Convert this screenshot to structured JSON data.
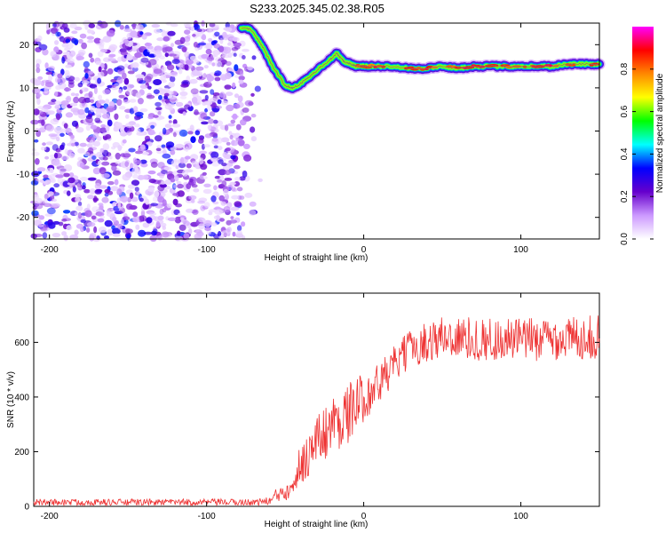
{
  "figure": {
    "title": "S233.2025.345.02.38.R05"
  },
  "chart_data": [
    {
      "type": "heatmap",
      "xlabel": "Height of straight line (km)",
      "ylabel": "Frequency (Hz)",
      "xlim": [
        -210,
        150
      ],
      "ylim": [
        -25,
        25
      ],
      "x_ticks": [
        -200,
        -100,
        0,
        100
      ],
      "y_ticks": [
        -20,
        -10,
        0,
        10,
        20
      ],
      "colorbar": {
        "label": "Normalized spectral amplitude",
        "range": [
          0,
          1
        ],
        "ticks": [
          "0.0",
          "0.2",
          "0.4",
          "0.6",
          "0.8"
        ],
        "colors": [
          "#ffffff",
          "#cc99ff",
          "#6600cc",
          "#0000ff",
          "#00ffff",
          "#00ff00",
          "#ffff00",
          "#ff8800",
          "#ff0000",
          "#ff00ff"
        ]
      },
      "ridge": {
        "x": [
          -78,
          -72,
          -65,
          -58,
          -50,
          -45,
          -40,
          -35,
          -30,
          -25,
          -20,
          -17,
          -15,
          -12,
          -8,
          -5,
          0,
          10,
          20,
          30,
          40,
          50,
          60,
          70,
          80,
          90,
          100,
          110,
          120,
          130,
          140,
          150
        ],
        "y": [
          24,
          23.5,
          20,
          15,
          10.5,
          10,
          11,
          12.5,
          14,
          15.5,
          17,
          18,
          17,
          16,
          15.5,
          15,
          15,
          15,
          15,
          14.5,
          14.5,
          15,
          14.5,
          15,
          15,
          15,
          15,
          15,
          15,
          15.5,
          15.5,
          15.5
        ]
      },
      "noise_region": {
        "x_range": [
          -210,
          -65
        ],
        "description_amplitude": [
          0.05,
          0.35
        ]
      }
    },
    {
      "type": "line",
      "xlabel": "Height of straight line (km)",
      "ylabel": "SNR (10 * v/v)",
      "xlim": [
        -210,
        150
      ],
      "ylim": [
        0,
        780
      ],
      "x_ticks": [
        -200,
        -100,
        0,
        100
      ],
      "y_ticks": [
        0,
        200,
        400,
        600
      ],
      "color": "#ee3333",
      "envelope": {
        "x": [
          -210,
          -70,
          -60,
          -50,
          -40,
          -30,
          -20,
          -10,
          0,
          10,
          20,
          30,
          40,
          50,
          75,
          100,
          150
        ],
        "mean": [
          15,
          15,
          20,
          60,
          150,
          240,
          300,
          340,
          400,
          450,
          520,
          580,
          600,
          620,
          610,
          610,
          620
        ],
        "amp": [
          12,
          12,
          15,
          45,
          80,
          95,
          110,
          110,
          90,
          80,
          70,
          70,
          75,
          80,
          80,
          80,
          80
        ]
      }
    }
  ]
}
